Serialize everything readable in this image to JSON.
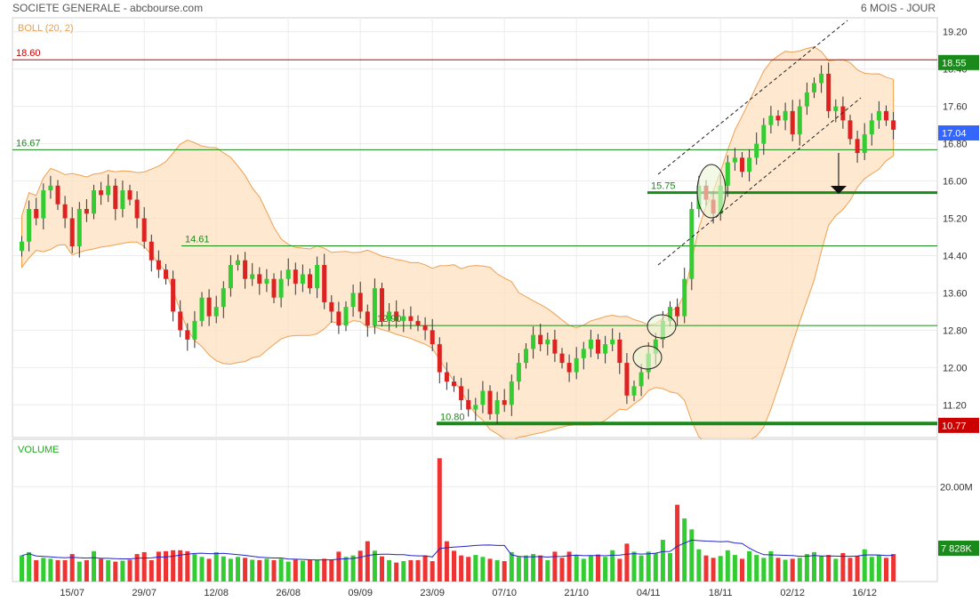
{
  "header": {
    "title": "SOCIETE GENERALE - abcbourse.com",
    "period": "6 MOIS - JOUR"
  },
  "chart_data": [
    {
      "type": "candlestick",
      "indicator_label": "BOLL (20, 2)",
      "ylim": [
        10.5,
        19.5
      ],
      "y_ticks": [
        "19.20",
        "18.40",
        "17.60",
        "16.80",
        "16.00",
        "15.20",
        "14.40",
        "13.60",
        "12.80",
        "12.00",
        "11.20"
      ],
      "x_ticks": [
        {
          "label": "15/07",
          "index": 7
        },
        {
          "label": "29/07",
          "index": 17
        },
        {
          "label": "12/08",
          "index": 27
        },
        {
          "label": "26/08",
          "index": 37
        },
        {
          "label": "09/09",
          "index": 47
        },
        {
          "label": "23/09",
          "index": 57
        },
        {
          "label": "07/10",
          "index": 67
        },
        {
          "label": "21/10",
          "index": 77
        },
        {
          "label": "04/11",
          "index": 87
        },
        {
          "label": "18/11",
          "index": 97
        },
        {
          "label": "02/12",
          "index": 107
        },
        {
          "label": "16/12",
          "index": 117
        }
      ],
      "close": [
        14.7,
        15.4,
        15.2,
        15.8,
        15.9,
        15.5,
        15.2,
        14.6,
        15.4,
        15.3,
        15.8,
        15.7,
        15.9,
        15.4,
        15.8,
        15.6,
        15.2,
        14.7,
        14.3,
        14.1,
        13.9,
        13.2,
        12.8,
        12.6,
        13.0,
        13.5,
        13.1,
        13.3,
        13.7,
        14.2,
        14.3,
        13.9,
        14.0,
        13.8,
        13.9,
        13.5,
        13.9,
        14.1,
        13.8,
        14.0,
        13.7,
        14.2,
        13.4,
        13.2,
        12.9,
        13.3,
        13.6,
        13.2,
        12.9,
        13.7,
        13.0,
        13.2,
        13.0,
        13.1,
        13.0,
        12.9,
        12.8,
        12.5,
        11.9,
        11.7,
        11.6,
        11.3,
        11.1,
        11.2,
        11.5,
        11.0,
        11.3,
        11.2,
        11.7,
        12.1,
        12.4,
        12.7,
        12.5,
        12.6,
        12.3,
        12.1,
        11.9,
        12.2,
        12.4,
        12.6,
        12.3,
        12.5,
        12.6,
        12.1,
        11.4,
        11.6,
        11.9,
        12.3,
        12.6,
        13.0,
        13.3,
        13.1,
        13.9,
        15.4,
        15.9,
        15.6,
        15.3,
        15.9,
        16.4,
        16.5,
        16.2,
        16.5,
        16.8,
        17.2,
        17.4,
        17.3,
        17.5,
        17.0,
        17.6,
        17.9,
        18.1,
        18.3,
        17.5,
        17.6,
        17.3,
        16.9,
        16.6,
        17.0,
        17.3,
        17.5,
        17.3,
        17.1
      ],
      "markers": [
        {
          "label": "18.60",
          "value": 18.6,
          "color": "#cc0000"
        },
        {
          "label": "16.67",
          "value": 16.67,
          "color": "#1a8a1a"
        },
        {
          "label": "14.61",
          "value": 14.61,
          "color": "#1a8a1a"
        },
        {
          "label": "15.75",
          "value": 15.75,
          "color": "#1a8a1a"
        },
        {
          "label": "12.90",
          "value": 12.9,
          "color": "#1a8a1a"
        },
        {
          "label": "10.80",
          "value": 10.8,
          "color": "#1a8a1a"
        }
      ],
      "badges": [
        {
          "label": "18.55",
          "value": 18.55,
          "color": "#1a8a1a"
        },
        {
          "label": "17.04",
          "value": 17.04,
          "color": "#3366ff"
        },
        {
          "label": "10.77",
          "value": 10.77,
          "color": "#cc0000"
        }
      ]
    },
    {
      "type": "bar",
      "title": "VOLUME",
      "y_ticks": [
        "20.00M"
      ],
      "ylim": [
        0,
        30
      ],
      "badge": "7 828K",
      "values": [
        5.5,
        6.2,
        4.5,
        5.0,
        4.8,
        4.5,
        4.5,
        5.8,
        4.2,
        4.5,
        6.4,
        4.8,
        4.5,
        4.2,
        4.4,
        4.6,
        5.8,
        6.2,
        4.5,
        6.3,
        6.4,
        6.6,
        6.6,
        6.4,
        5.8,
        5.2,
        4.8,
        6.2,
        5.3,
        4.8,
        5.2,
        5.0,
        4.6,
        4.5,
        4.8,
        4.5,
        4.8,
        4.2,
        4.6,
        4.4,
        4.6,
        4.5,
        4.8,
        4.6,
        6.3,
        5.2,
        5.5,
        6.5,
        8.5,
        6.5,
        5.3,
        4.5,
        4.0,
        4.3,
        4.5,
        4.5,
        5.5,
        4.3,
        26.0,
        8.5,
        6.5,
        5.5,
        5.2,
        5.6,
        5.2,
        4.8,
        4.5,
        4.3,
        6.2,
        5.2,
        5.5,
        5.8,
        5.5,
        4.5,
        6.3,
        5.0,
        6.3,
        5.6,
        4.8,
        5.5,
        5.7,
        5.2,
        6.6,
        4.8,
        8.0,
        6.3,
        5.5,
        6.3,
        6.0,
        8.8,
        6.0,
        16.2,
        13.3,
        11.0,
        6.8,
        5.5,
        5.0,
        5.4,
        6.6,
        5.6,
        4.8,
        6.4,
        5.6,
        5.0,
        6.4,
        5.0,
        4.6,
        4.8,
        5.0,
        5.8,
        6.2,
        5.4,
        5.6,
        4.8,
        6.0,
        5.0,
        5.4,
        6.8,
        5.2,
        5.6,
        5.0,
        5.8
      ]
    }
  ]
}
